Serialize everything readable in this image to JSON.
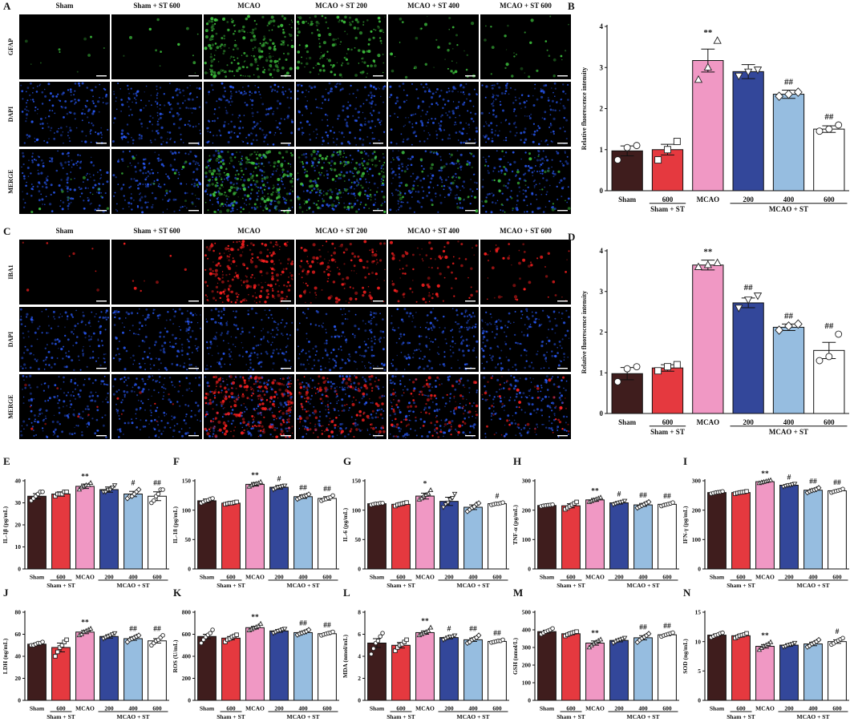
{
  "panel_letters": [
    "A",
    "B",
    "C",
    "D",
    "E",
    "F",
    "G",
    "H",
    "I",
    "J",
    "K",
    "L",
    "M",
    "N"
  ],
  "micro": {
    "column_labels": [
      "Sham",
      "Sham + ST 600",
      "MCAO",
      "MCAO + ST 200",
      "MCAO + ST 400",
      "MCAO + ST 600"
    ],
    "panelA_rows": [
      "GFAP",
      "DAPI",
      "MERGE"
    ],
    "panelC_rows": [
      "IBA1",
      "DAPI",
      "MERGE"
    ],
    "panelA_marker_intensity": [
      0.04,
      0.05,
      0.85,
      0.6,
      0.15,
      0.12
    ],
    "panelC_marker_intensity": [
      0.03,
      0.03,
      0.95,
      0.55,
      0.35,
      0.18
    ],
    "colors": {
      "gfap": "#3ec43e",
      "iba1": "#ff2020",
      "dapi": "#2a5cff"
    }
  },
  "groups": {
    "tick_labels": [
      "Sham",
      "600",
      "MCAO",
      "200",
      "400",
      "600"
    ],
    "sham_st_label": "Sham + ST",
    "mcao_st_label": "MCAO + ST",
    "bar_colors": [
      "#3f1d1d",
      "#e5393f",
      "#f098c4",
      "#33479a",
      "#96bde0",
      "#ffffff"
    ],
    "marker_shapes": [
      "circle",
      "square",
      "triangle",
      "invtriangle",
      "diamond",
      "circle"
    ]
  },
  "chart_data": [
    {
      "panel": "B",
      "type": "bar",
      "ylabel": "Relative fluorescence intensity",
      "ylim": [
        0,
        4
      ],
      "ticks": [
        0,
        1,
        2,
        3,
        4
      ],
      "values": [
        0.97,
        1.0,
        3.17,
        2.9,
        2.35,
        1.5
      ],
      "errors": [
        0.12,
        0.13,
        0.28,
        0.17,
        0.1,
        0.08
      ],
      "points": [
        [
          0.75,
          1.05,
          1.1
        ],
        [
          0.75,
          1.0,
          1.2
        ],
        [
          2.7,
          3.0,
          3.65
        ],
        [
          2.8,
          2.9,
          2.95
        ],
        [
          2.3,
          2.35,
          2.4
        ],
        [
          1.45,
          1.5,
          1.6
        ]
      ],
      "annotations": [
        "",
        "",
        "**",
        "",
        "##",
        "##"
      ]
    },
    {
      "panel": "D",
      "type": "bar",
      "ylabel": "Relative fluorescence intensity",
      "ylim": [
        0,
        4
      ],
      "ticks": [
        0,
        1,
        2,
        3,
        4
      ],
      "values": [
        0.98,
        1.12,
        3.65,
        2.72,
        2.12,
        1.55
      ],
      "errors": [
        0.15,
        0.08,
        0.12,
        0.12,
        0.08,
        0.2
      ],
      "points": [
        [
          0.78,
          1.1,
          1.15
        ],
        [
          1.05,
          1.15,
          1.2
        ],
        [
          3.6,
          3.65,
          3.7
        ],
        [
          2.6,
          2.8,
          2.9
        ],
        [
          2.05,
          2.15,
          2.2
        ],
        [
          1.3,
          1.4,
          1.95
        ]
      ],
      "annotations": [
        "",
        "",
        "**",
        "##",
        "##",
        "##"
      ]
    },
    {
      "panel": "E",
      "type": "bar",
      "ylabel": "IL-1β (pg/mL)",
      "ylim": [
        0,
        40
      ],
      "ticks": [
        0,
        10,
        20,
        30,
        40
      ],
      "values": [
        33,
        34,
        37.5,
        36,
        34,
        33
      ],
      "errors": [
        1.2,
        1.0,
        1.0,
        1.2,
        1.2,
        2.0
      ],
      "points": [
        [
          31,
          32,
          33,
          34,
          35,
          35
        ],
        [
          33,
          34,
          34,
          34,
          35,
          35
        ],
        [
          36,
          37,
          37.5,
          38,
          38,
          39
        ],
        [
          35,
          35,
          36,
          36,
          37,
          38
        ],
        [
          32,
          33,
          33,
          34,
          35,
          36
        ],
        [
          30,
          31,
          33,
          34,
          36,
          36
        ]
      ],
      "annotations": [
        "",
        "",
        "**",
        "",
        "#",
        "##"
      ]
    },
    {
      "panel": "F",
      "type": "bar",
      "ylabel": "IL-18 (pg/mL)",
      "ylim": [
        0,
        150
      ],
      "ticks": [
        0,
        50,
        100,
        150
      ],
      "values": [
        116,
        112,
        144,
        139,
        123,
        120
      ],
      "errors": [
        3,
        2,
        3,
        3,
        3,
        3
      ],
      "points": [
        [
          112,
          114,
          116,
          117,
          119,
          120
        ],
        [
          110,
          111,
          112,
          112,
          113,
          114
        ],
        [
          140,
          142,
          144,
          145,
          146,
          148
        ],
        [
          135,
          137,
          139,
          140,
          141,
          142
        ],
        [
          119,
          121,
          123,
          124,
          125,
          127
        ],
        [
          116,
          118,
          119,
          121,
          122,
          125
        ]
      ],
      "annotations": [
        "",
        "",
        "**",
        "#",
        "##",
        "##"
      ]
    },
    {
      "panel": "G",
      "type": "bar",
      "ylabel": "IL-6 (pg/mL)",
      "ylim": [
        0,
        150
      ],
      "ticks": [
        0,
        50,
        100,
        150
      ],
      "values": [
        111,
        110,
        124,
        115,
        105,
        111
      ],
      "errors": [
        1,
        2,
        5,
        7,
        4,
        1
      ],
      "points": [
        [
          109,
          110,
          111,
          111,
          112,
          112
        ],
        [
          107,
          109,
          110,
          111,
          112,
          113
        ],
        [
          118,
          120,
          124,
          126,
          128,
          134
        ],
        [
          105,
          110,
          113,
          118,
          121,
          128
        ],
        [
          98,
          101,
          104,
          106,
          110,
          112
        ],
        [
          109,
          110,
          111,
          111,
          112,
          113
        ]
      ],
      "annotations": [
        "",
        "",
        "*",
        "",
        "",
        "#"
      ]
    },
    {
      "panel": "H",
      "type": "bar",
      "ylabel": "TNF-α (pg/mL)",
      "ylim": [
        0,
        300
      ],
      "ticks": [
        0,
        100,
        200,
        300
      ],
      "values": [
        216,
        215,
        235,
        225,
        218,
        220
      ],
      "errors": [
        2,
        7,
        5,
        4,
        5,
        3
      ],
      "points": [
        [
          213,
          215,
          216,
          217,
          218,
          219
        ],
        [
          203,
          208,
          213,
          218,
          223,
          228
        ],
        [
          228,
          231,
          234,
          237,
          240,
          243
        ],
        [
          219,
          222,
          225,
          227,
          229,
          232
        ],
        [
          208,
          212,
          216,
          220,
          224,
          228
        ],
        [
          214,
          217,
          219,
          221,
          223,
          226
        ]
      ],
      "annotations": [
        "",
        "",
        "**",
        "#",
        "##",
        "##"
      ]
    },
    {
      "panel": "I",
      "type": "bar",
      "ylabel": "IFN-γ (pg/mL)",
      "ylim": [
        0,
        300
      ],
      "ticks": [
        0,
        100,
        200,
        300
      ],
      "values": [
        260,
        260,
        297,
        285,
        268,
        266
      ],
      "errors": [
        2,
        2,
        3,
        3,
        4,
        3
      ],
      "points": [
        [
          256,
          258,
          260,
          261,
          262,
          264
        ],
        [
          256,
          258,
          260,
          261,
          262,
          264
        ],
        [
          292,
          294,
          296,
          298,
          300,
          302
        ],
        [
          280,
          283,
          285,
          286,
          288,
          290
        ],
        [
          260,
          264,
          267,
          269,
          272,
          276
        ],
        [
          260,
          263,
          265,
          267,
          269,
          272
        ]
      ],
      "annotations": [
        "",
        "",
        "**",
        "#",
        "##",
        "##"
      ]
    },
    {
      "panel": "J",
      "type": "bar",
      "ylabel": "LDH (ng/mL)",
      "ylim": [
        0,
        80
      ],
      "ticks": [
        0,
        20,
        40,
        60,
        80
      ],
      "values": [
        51,
        48,
        62,
        58,
        56,
        54
      ],
      "errors": [
        1,
        4,
        1.5,
        1.5,
        1.5,
        2
      ],
      "points": [
        [
          50,
          50,
          51,
          52,
          52,
          53
        ],
        [
          40,
          44,
          48,
          50,
          53,
          55
        ],
        [
          59,
          60,
          62,
          63,
          64,
          65
        ],
        [
          56,
          57,
          58,
          59,
          60,
          61
        ],
        [
          53,
          55,
          56,
          57,
          58,
          59
        ],
        [
          50,
          52,
          54,
          55,
          57,
          59
        ]
      ],
      "annotations": [
        "",
        "",
        "**",
        "",
        "##",
        "##"
      ]
    },
    {
      "panel": "K",
      "type": "bar",
      "ylabel": "ROS (U/mL)",
      "ylim": [
        0,
        800
      ],
      "ticks": [
        0,
        200,
        400,
        600,
        800
      ],
      "values": [
        580,
        565,
        660,
        630,
        615,
        605
      ],
      "errors": [
        20,
        15,
        12,
        12,
        10,
        8
      ],
      "points": [
        [
          520,
          550,
          575,
          595,
          610,
          640
        ],
        [
          530,
          550,
          560,
          575,
          585,
          595
        ],
        [
          635,
          645,
          655,
          665,
          675,
          695
        ],
        [
          610,
          620,
          630,
          635,
          645,
          650
        ],
        [
          595,
          605,
          612,
          620,
          628,
          640
        ],
        [
          590,
          598,
          604,
          610,
          615,
          622
        ]
      ],
      "annotations": [
        "",
        "",
        "**",
        "",
        "##",
        "##"
      ]
    },
    {
      "panel": "L",
      "type": "bar",
      "ylabel": "MDA (nmol/mL)",
      "ylim": [
        0,
        8
      ],
      "ticks": [
        0,
        2,
        4,
        6,
        8
      ],
      "values": [
        5.2,
        5.0,
        6.15,
        5.7,
        5.5,
        5.35
      ],
      "errors": [
        0.4,
        0.25,
        0.15,
        0.12,
        0.15,
        0.08
      ],
      "points": [
        [
          4.2,
          4.7,
          5.2,
          5.4,
          5.8,
          6.1
        ],
        [
          4.5,
          4.8,
          5.0,
          5.1,
          5.3,
          5.5
        ],
        [
          5.9,
          6.0,
          6.1,
          6.2,
          6.3,
          6.6
        ],
        [
          5.5,
          5.6,
          5.7,
          5.8,
          5.8,
          5.9
        ],
        [
          5.2,
          5.3,
          5.5,
          5.6,
          5.7,
          5.9
        ],
        [
          5.25,
          5.3,
          5.35,
          5.4,
          5.4,
          5.5
        ]
      ],
      "annotations": [
        "",
        "",
        "**",
        "#",
        "##",
        "##"
      ]
    },
    {
      "panel": "M",
      "type": "bar",
      "ylabel": "GSH (nmol/L)",
      "ylim": [
        0,
        500
      ],
      "ticks": [
        0,
        100,
        200,
        300,
        400,
        500
      ],
      "values": [
        390,
        378,
        325,
        340,
        355,
        372
      ],
      "errors": [
        8,
        6,
        12,
        8,
        12,
        5
      ],
      "points": [
        [
          375,
          382,
          390,
          395,
          400,
          408
        ],
        [
          365,
          372,
          378,
          382,
          386,
          390
        ],
        [
          300,
          312,
          322,
          330,
          338,
          345
        ],
        [
          325,
          333,
          340,
          345,
          350,
          355
        ],
        [
          330,
          342,
          352,
          360,
          368,
          378
        ],
        [
          362,
          368,
          372,
          376,
          380,
          384
        ]
      ],
      "annotations": [
        "",
        "",
        "**",
        "",
        "##",
        "##"
      ]
    },
    {
      "panel": "N",
      "type": "bar",
      "ylabel": "SOD (ng/mL)",
      "ylim": [
        0,
        15
      ],
      "ticks": [
        0,
        5,
        10,
        15
      ],
      "values": [
        11.1,
        11.0,
        9.2,
        9.4,
        9.6,
        10.0
      ],
      "errors": [
        0.2,
        0.2,
        0.3,
        0.2,
        0.3,
        0.3
      ],
      "points": [
        [
          10.7,
          10.9,
          11.1,
          11.2,
          11.4,
          11.5
        ],
        [
          10.6,
          10.8,
          11.0,
          11.1,
          11.2,
          11.4
        ],
        [
          8.6,
          8.9,
          9.2,
          9.4,
          9.6,
          9.9
        ],
        [
          9.1,
          9.2,
          9.4,
          9.5,
          9.6,
          9.8
        ],
        [
          9.1,
          9.3,
          9.6,
          9.8,
          10.0,
          10.3
        ],
        [
          9.5,
          9.7,
          10.0,
          10.2,
          10.4,
          10.6
        ]
      ],
      "annotations": [
        "",
        "",
        "**",
        "",
        "",
        "#"
      ]
    }
  ]
}
